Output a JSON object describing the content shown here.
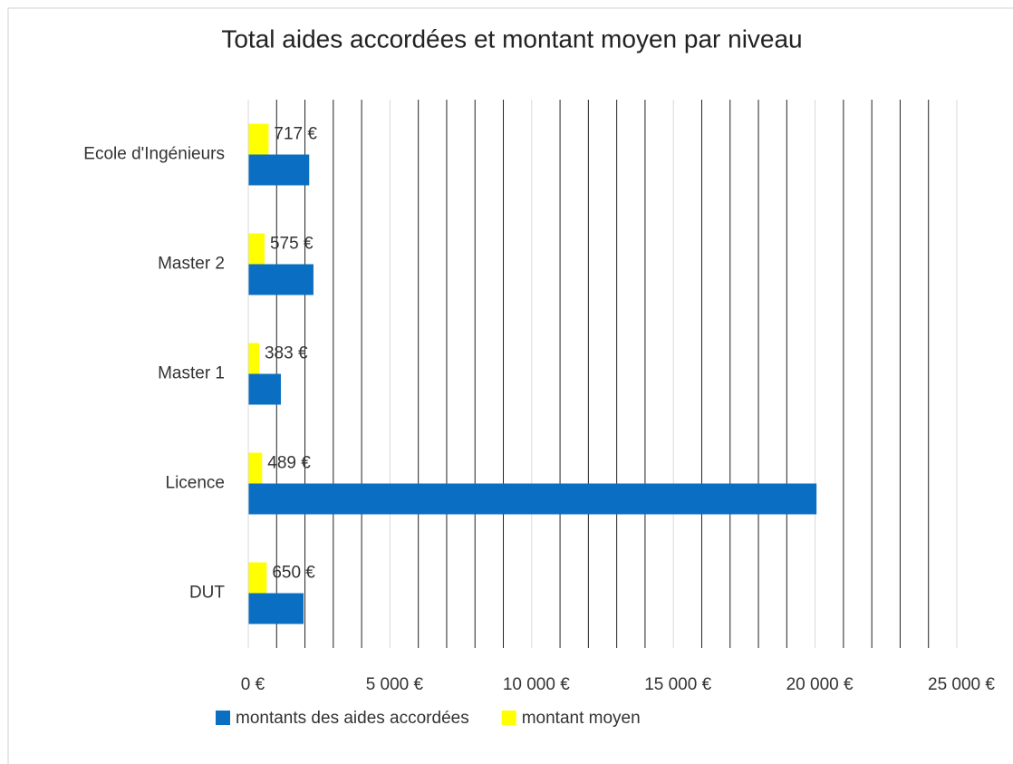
{
  "chart_data": {
    "type": "barh",
    "title": "Total aides accordées et montant moyen par niveau",
    "categories": [
      "DUT",
      "Licence",
      "Master 1",
      "Master 2",
      "Ecole d'Ingénieurs"
    ],
    "series": [
      {
        "name": "montants des aides accordées",
        "color": "#0a6fc2",
        "values": [
          1950,
          20050,
          1150,
          2300,
          2150
        ]
      },
      {
        "name": "montant moyen",
        "color": "#ffff00",
        "values": [
          650,
          489,
          383,
          575,
          717
        ],
        "value_labels": [
          "650 €",
          "489 €",
          "383 €",
          "575 €",
          "717 €"
        ]
      }
    ],
    "xlim": [
      0,
      25000
    ],
    "xticks": [
      {
        "value": 0,
        "label": "0 €"
      },
      {
        "value": 5000,
        "label": "5 000 €"
      },
      {
        "value": 10000,
        "label": "10 000 €"
      },
      {
        "value": 15000,
        "label": "15 000 €"
      },
      {
        "value": 20000,
        "label": "20 000 €"
      },
      {
        "value": 25000,
        "label": "25 000 €"
      }
    ],
    "xminorticks": [
      1000,
      2000,
      3000,
      4000,
      6000,
      7000,
      8000,
      9000,
      11000,
      12000,
      13000,
      14000,
      16000,
      17000,
      18000,
      19000,
      21000,
      22000,
      23000,
      24000
    ],
    "grid": true,
    "legend": "bottom"
  }
}
